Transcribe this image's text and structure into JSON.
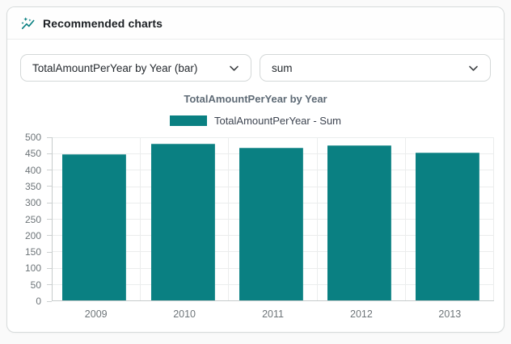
{
  "panel": {
    "header": {
      "title": "Recommended charts",
      "icon": "auto-graph-icon"
    }
  },
  "controls": {
    "chart_select": {
      "value": "TotalAmountPerYear by Year (bar)"
    },
    "aggregation_select": {
      "value": "sum"
    }
  },
  "colors": {
    "accent_teal": "#0a8082",
    "panel_border": "#d7dbdb",
    "grid_line": "#ebeded",
    "axis_line": "#c6cbcb"
  },
  "chart_data": {
    "type": "bar",
    "title": "TotalAmountPerYear by Year",
    "legend": [
      {
        "label": "TotalAmountPerYear - Sum",
        "color": "#0a8082"
      }
    ],
    "legend_position": "top",
    "categories": [
      "2009",
      "2010",
      "2011",
      "2012",
      "2013"
    ],
    "values": [
      448,
      480,
      468,
      476,
      452
    ],
    "xlabel": "",
    "ylabel": "",
    "ylim": [
      0,
      500
    ],
    "y_ticks": [
      500,
      450,
      400,
      350,
      300,
      250,
      200,
      150,
      100,
      50,
      0
    ],
    "grid": true,
    "bar_color": "#0a8082"
  }
}
